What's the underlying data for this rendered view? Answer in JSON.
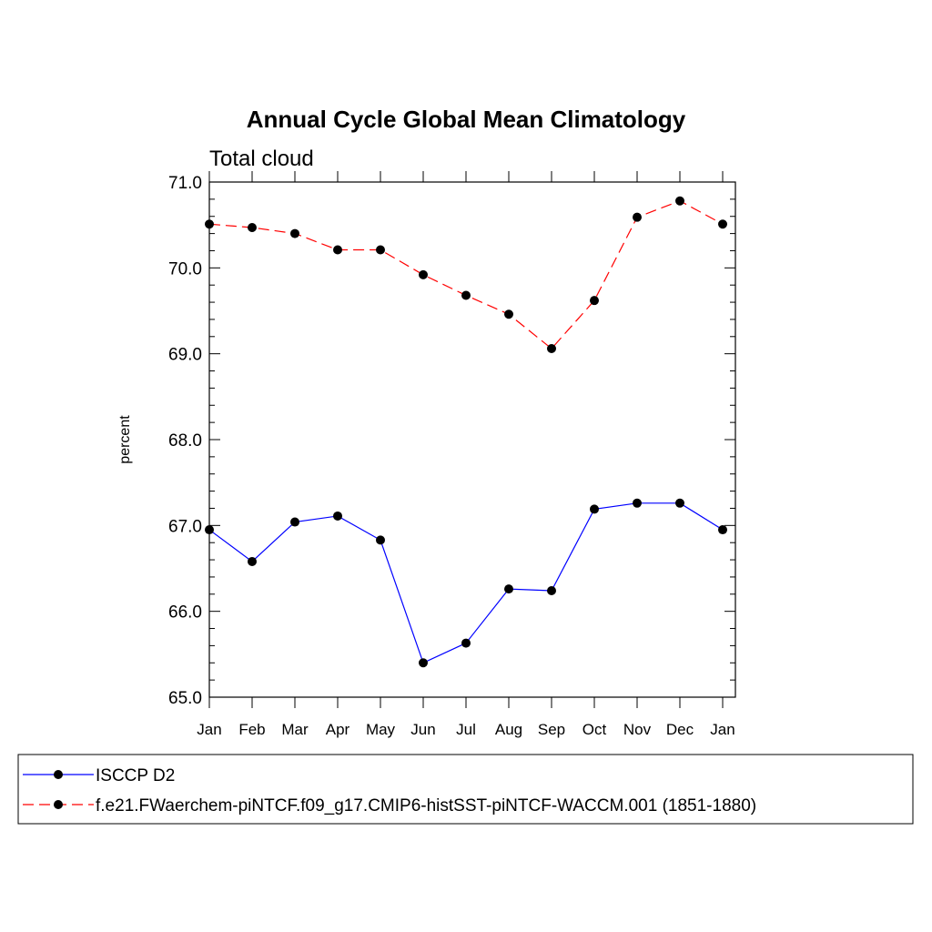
{
  "chart_data": {
    "type": "line",
    "title": "Annual Cycle Global Mean Climatology",
    "subtitle": "Total cloud",
    "xlabel": "",
    "ylabel": "percent",
    "categories": [
      "Jan",
      "Feb",
      "Mar",
      "Apr",
      "May",
      "Jun",
      "Jul",
      "Aug",
      "Sep",
      "Oct",
      "Nov",
      "Dec",
      "Jan"
    ],
    "ylim": [
      65.0,
      71.0
    ],
    "yticks": [
      "65.0",
      "66.0",
      "67.0",
      "68.0",
      "69.0",
      "70.0",
      "71.0"
    ],
    "grid": false,
    "legend_position": "bottom",
    "series": [
      {
        "name": "ISCCP D2",
        "color": "#0000ff",
        "dash": "solid",
        "values": [
          66.95,
          66.58,
          67.04,
          67.11,
          66.83,
          65.4,
          65.63,
          66.26,
          66.24,
          67.19,
          67.26,
          67.26,
          66.95
        ]
      },
      {
        "name": "f.e21.FWaerchem-piNTCF.f09_g17.CMIP6-histSST-piNTCF-WACCM.001 (1851-1880)",
        "color": "#ff0000",
        "dash": "dashed",
        "values": [
          70.51,
          70.47,
          70.4,
          70.21,
          70.21,
          69.92,
          69.68,
          69.46,
          69.06,
          69.62,
          70.59,
          70.78,
          70.51
        ]
      }
    ],
    "marker_color": "#000000"
  }
}
